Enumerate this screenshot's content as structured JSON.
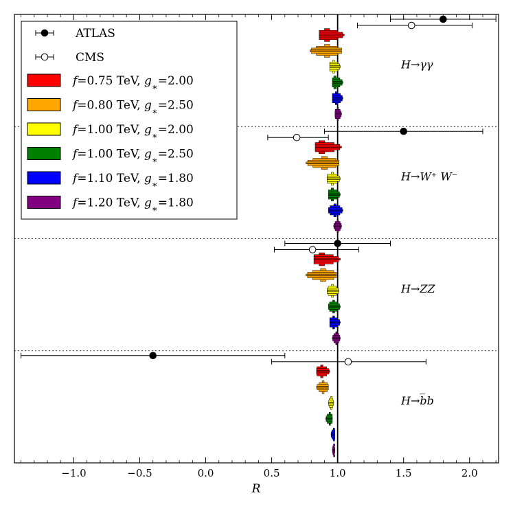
{
  "chart_data": {
    "type": "scatter",
    "title": "",
    "xlabel": "R",
    "ylabel": "",
    "xlim": [
      -1.45,
      2.22
    ],
    "xticks": [
      -1.0,
      -0.5,
      0.0,
      0.5,
      1.0,
      1.5,
      2.0
    ],
    "xtick_labels": [
      "−1.0",
      "−0.5",
      "0.0",
      "0.5",
      "1.0",
      "1.5",
      "2.0"
    ],
    "reference_line": 1.0,
    "legend_position": "top-left",
    "legend": {
      "experiments": [
        {
          "key": "atlas",
          "label": "ATLAS",
          "marker": "filled-circle"
        },
        {
          "key": "cms",
          "label": "CMS",
          "marker": "open-circle"
        }
      ],
      "models": [
        {
          "key": "m1",
          "f_value": "0.75",
          "g_value": "2.00",
          "color": "#ff0000"
        },
        {
          "key": "m2",
          "f_value": "0.80",
          "g_value": "2.50",
          "color": "#ffa500"
        },
        {
          "key": "m3",
          "f_value": "1.00",
          "g_value": "2.00",
          "color": "#ffff00"
        },
        {
          "key": "m4",
          "f_value": "1.00",
          "g_value": "2.50",
          "color": "#008000"
        },
        {
          "key": "m5",
          "f_value": "1.10",
          "g_value": "1.80",
          "color": "#0000ff"
        },
        {
          "key": "m6",
          "f_value": "1.20",
          "g_value": "1.80",
          "color": "#800080"
        }
      ]
    },
    "channels": [
      {
        "key": "gamma-gamma",
        "label_particle": "H",
        "label_final": "γγ",
        "atlas": {
          "value": 1.8,
          "low": 1.4,
          "high": 2.2
        },
        "cms": {
          "value": 1.56,
          "low": 1.15,
          "high": 2.02
        },
        "model_distributions": [
          {
            "center": 0.92,
            "low": 0.86,
            "high": 1.05
          },
          {
            "center": 0.92,
            "low": 0.79,
            "high": 1.03
          },
          {
            "center": 0.97,
            "low": 0.94,
            "high": 1.02
          },
          {
            "center": 0.98,
            "low": 0.96,
            "high": 1.04
          },
          {
            "center": 0.99,
            "low": 0.96,
            "high": 1.04
          },
          {
            "center": 1.0,
            "low": 0.98,
            "high": 1.03
          }
        ]
      },
      {
        "key": "ww",
        "label_particle": "H",
        "label_final": "W⁺ W⁻",
        "atlas": {
          "value": 1.5,
          "low": 0.9,
          "high": 2.1
        },
        "cms": {
          "value": 0.69,
          "low": 0.47,
          "high": 0.93
        },
        "model_distributions": [
          {
            "center": 0.88,
            "low": 0.83,
            "high": 1.03
          },
          {
            "center": 0.9,
            "low": 0.76,
            "high": 1.01
          },
          {
            "center": 0.96,
            "low": 0.92,
            "high": 1.02
          },
          {
            "center": 0.96,
            "low": 0.93,
            "high": 1.02
          },
          {
            "center": 0.98,
            "low": 0.93,
            "high": 1.04
          },
          {
            "center": 1.0,
            "low": 0.97,
            "high": 1.03
          }
        ]
      },
      {
        "key": "zz",
        "label_particle": "H",
        "label_final": "ZZ",
        "atlas": {
          "value": 1.0,
          "low": 0.6,
          "high": 1.4
        },
        "cms": {
          "value": 0.81,
          "low": 0.52,
          "high": 1.16
        },
        "model_distributions": [
          {
            "center": 0.88,
            "low": 0.82,
            "high": 1.02
          },
          {
            "center": 0.89,
            "low": 0.76,
            "high": 0.99
          },
          {
            "center": 0.96,
            "low": 0.92,
            "high": 1.01
          },
          {
            "center": 0.97,
            "low": 0.93,
            "high": 1.02
          },
          {
            "center": 0.97,
            "low": 0.94,
            "high": 1.02
          },
          {
            "center": 0.99,
            "low": 0.96,
            "high": 1.02
          }
        ]
      },
      {
        "key": "bb",
        "label_particle": "H",
        "label_final": "b̅b",
        "atlas": {
          "value": -0.4,
          "low": -1.4,
          "high": 0.6
        },
        "cms": {
          "value": 1.08,
          "low": 0.5,
          "high": 1.67
        },
        "model_distributions": [
          {
            "center": 0.88,
            "low": 0.84,
            "high": 0.94
          },
          {
            "center": 0.89,
            "low": 0.84,
            "high": 0.93
          },
          {
            "center": 0.95,
            "low": 0.93,
            "high": 0.97
          },
          {
            "center": 0.94,
            "low": 0.91,
            "high": 0.96
          },
          {
            "center": 0.97,
            "low": 0.95,
            "high": 0.98
          },
          {
            "center": 0.97,
            "low": 0.96,
            "high": 0.98
          }
        ]
      }
    ]
  }
}
